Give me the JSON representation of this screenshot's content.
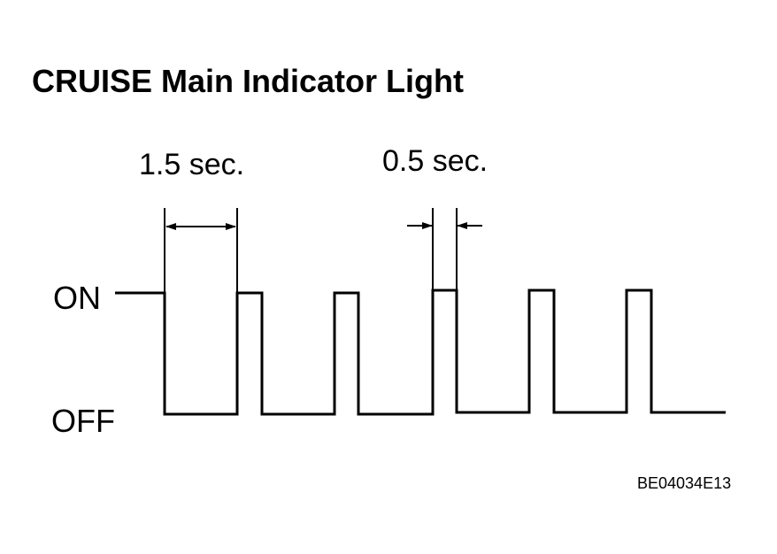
{
  "title": "CRUISE Main Indicator Light",
  "labels": {
    "period_long": "1.5 sec.",
    "period_short": "0.5 sec.",
    "on": "ON",
    "off": "OFF"
  },
  "figure_code": "BE04034E13"
}
